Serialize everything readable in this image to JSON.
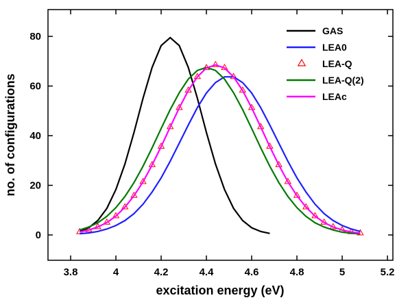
{
  "chart_data": {
    "type": "line",
    "xlabel": "excitation energy (eV)",
    "ylabel": "no. of configurations",
    "xlim": [
      3.7,
      5.224
    ],
    "ylim": [
      -10.2,
      90.8
    ],
    "xticks": [
      3.8,
      4.0,
      4.2,
      4.4,
      4.6,
      4.8,
      5.0,
      5.2
    ],
    "yticks": [
      0,
      20,
      40,
      60,
      80
    ],
    "legend": "upper right",
    "series": [
      {
        "name": "GAS",
        "color": "#000000",
        "style": "line",
        "x": [
          3.84,
          3.88,
          3.92,
          3.96,
          4.0,
          4.04,
          4.08,
          4.12,
          4.16,
          4.2,
          4.24,
          4.28,
          4.32,
          4.36,
          4.4,
          4.44,
          4.48,
          4.52,
          4.56,
          4.6,
          4.64,
          4.68
        ],
        "values": [
          1.4,
          2.9,
          5.8,
          10.7,
          18.3,
          28.6,
          41.3,
          55.1,
          67.5,
          76.3,
          79.5,
          76.3,
          67.5,
          55.1,
          41.3,
          28.6,
          18.3,
          10.7,
          5.8,
          2.9,
          1.4,
          0.6
        ]
      },
      {
        "name": "LEA0",
        "color": "#1f1fff",
        "style": "line",
        "x": [
          3.84,
          3.88,
          3.92,
          3.96,
          4.0,
          4.04,
          4.08,
          4.12,
          4.16,
          4.2,
          4.24,
          4.28,
          4.32,
          4.36,
          4.4,
          4.44,
          4.48,
          4.52,
          4.56,
          4.6,
          4.64,
          4.68,
          4.72,
          4.76,
          4.8,
          4.84,
          4.88,
          4.92,
          4.96,
          5.0,
          5.04,
          5.08
        ],
        "values": [
          0.5,
          0.8,
          1.4,
          2.4,
          3.8,
          5.8,
          8.6,
          12.4,
          17.3,
          23.0,
          29.7,
          37.0,
          44.3,
          51.3,
          57.2,
          61.4,
          63.7,
          63.7,
          61.4,
          57.2,
          51.3,
          44.3,
          37.0,
          29.7,
          23.0,
          17.3,
          12.4,
          8.6,
          5.8,
          3.8,
          2.4,
          1.4
        ]
      },
      {
        "name": "LEA-Q",
        "color": "#ff0000",
        "style": "triangle",
        "x": [
          3.84,
          3.88,
          3.92,
          3.96,
          4.0,
          4.04,
          4.08,
          4.12,
          4.16,
          4.2,
          4.24,
          4.28,
          4.32,
          4.36,
          4.4,
          4.44,
          4.48,
          4.52,
          4.56,
          4.6,
          4.64,
          4.68,
          4.72,
          4.76,
          4.8,
          4.84,
          4.88,
          4.92,
          4.96,
          5.0,
          5.04,
          5.08
        ],
        "values": [
          1.2,
          2.0,
          3.2,
          5.0,
          7.6,
          11.2,
          15.8,
          21.4,
          28.2,
          35.6,
          43.5,
          51.2,
          58.2,
          63.7,
          67.3,
          68.5,
          67.3,
          63.7,
          58.2,
          51.2,
          43.5,
          35.6,
          28.2,
          21.4,
          15.8,
          11.2,
          7.6,
          5.0,
          3.2,
          2.0,
          1.2,
          0.7
        ]
      },
      {
        "name": "LEA-Q(2)",
        "color": "#007a00",
        "style": "line",
        "x": [
          3.84,
          3.88,
          3.92,
          3.96,
          4.0,
          4.04,
          4.08,
          4.12,
          4.16,
          4.2,
          4.24,
          4.28,
          4.32,
          4.36,
          4.4,
          4.44,
          4.48,
          4.52,
          4.56,
          4.6,
          4.64,
          4.68,
          4.72,
          4.76,
          4.8,
          4.84,
          4.88,
          4.92,
          4.96,
          5.0,
          5.04,
          5.08
        ],
        "values": [
          2.0,
          3.2,
          4.9,
          7.5,
          11.0,
          15.5,
          21.1,
          27.7,
          35.1,
          42.9,
          50.5,
          57.3,
          62.8,
          66.3,
          67.5,
          66.3,
          62.8,
          57.3,
          50.5,
          42.9,
          35.1,
          27.7,
          21.1,
          15.5,
          11.0,
          7.5,
          4.9,
          3.2,
          2.0,
          1.1,
          0.7,
          0.4
        ]
      },
      {
        "name": "LEAc",
        "color": "#ff00ff",
        "style": "line",
        "x": [
          3.84,
          3.88,
          3.92,
          3.96,
          4.0,
          4.04,
          4.08,
          4.12,
          4.16,
          4.2,
          4.24,
          4.28,
          4.32,
          4.36,
          4.4,
          4.44,
          4.48,
          4.52,
          4.56,
          4.6,
          4.64,
          4.68,
          4.72,
          4.76,
          4.8,
          4.84,
          4.88,
          4.92,
          4.96,
          5.0,
          5.04,
          5.08
        ],
        "values": [
          1.2,
          2.0,
          3.2,
          5.0,
          7.6,
          11.2,
          15.8,
          21.4,
          28.2,
          35.6,
          43.5,
          51.2,
          58.2,
          63.7,
          67.3,
          68.5,
          67.3,
          63.7,
          58.2,
          51.2,
          43.5,
          35.6,
          28.2,
          21.4,
          15.8,
          11.2,
          7.6,
          5.0,
          3.2,
          2.0,
          1.2,
          0.7
        ]
      }
    ]
  }
}
